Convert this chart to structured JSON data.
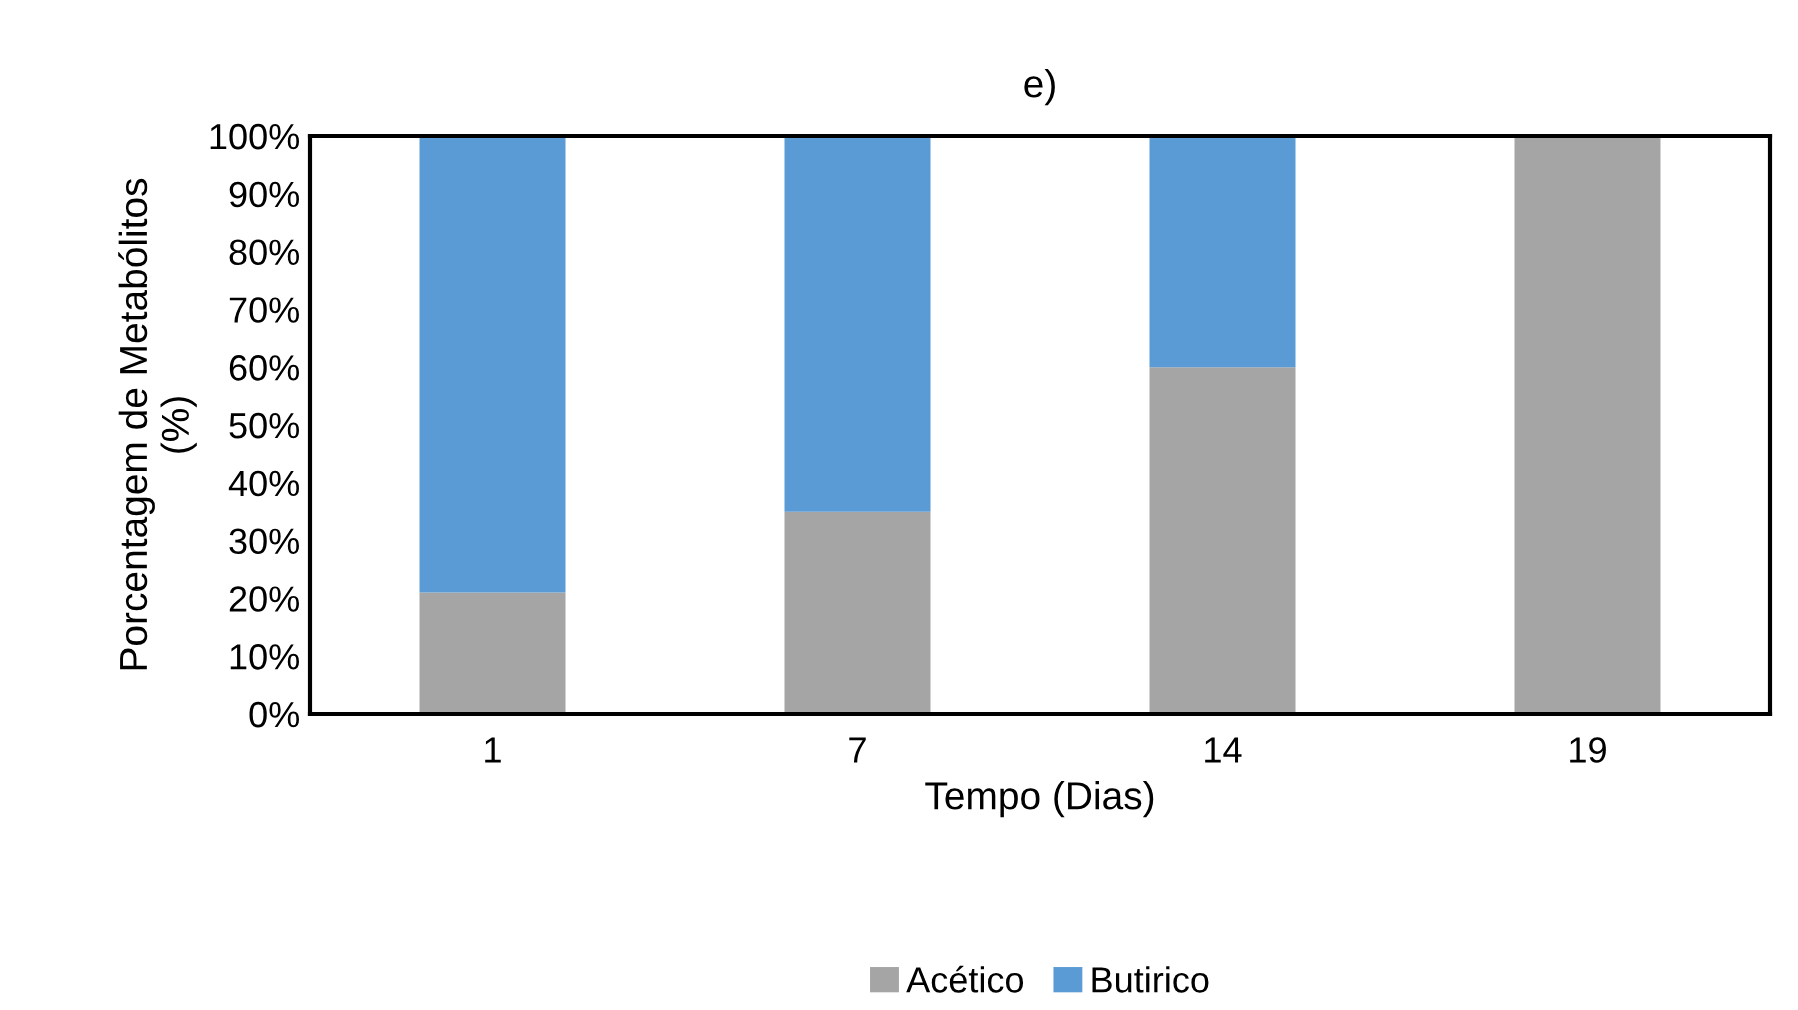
{
  "chart_data": {
    "type": "bar",
    "title": "e)",
    "xlabel": "Tempo (Dias)",
    "ylabel": "Porcentagem de Metabólitos\n(%)",
    "categories": [
      "1",
      "7",
      "14",
      "19"
    ],
    "stacked": true,
    "series": [
      {
        "name": "Acético",
        "color": "#a5a5a5",
        "values": [
          21,
          35,
          60,
          100
        ]
      },
      {
        "name": "Butirico",
        "color": "#5b9bd5",
        "values": [
          79,
          65,
          40,
          0
        ]
      }
    ],
    "ylim": [
      0,
      100
    ],
    "yticks": [
      {
        "value": 0,
        "label": "0%"
      },
      {
        "value": 10,
        "label": "10%"
      },
      {
        "value": 20,
        "label": "20%"
      },
      {
        "value": 30,
        "label": "30%"
      },
      {
        "value": 40,
        "label": "40%"
      },
      {
        "value": 50,
        "label": "50%"
      },
      {
        "value": 60,
        "label": "60%"
      },
      {
        "value": 70,
        "label": "70%"
      },
      {
        "value": 80,
        "label": "80%"
      },
      {
        "value": 90,
        "label": "90%"
      },
      {
        "value": 100,
        "label": "100%"
      }
    ],
    "grid": false,
    "legend": "bottom"
  }
}
